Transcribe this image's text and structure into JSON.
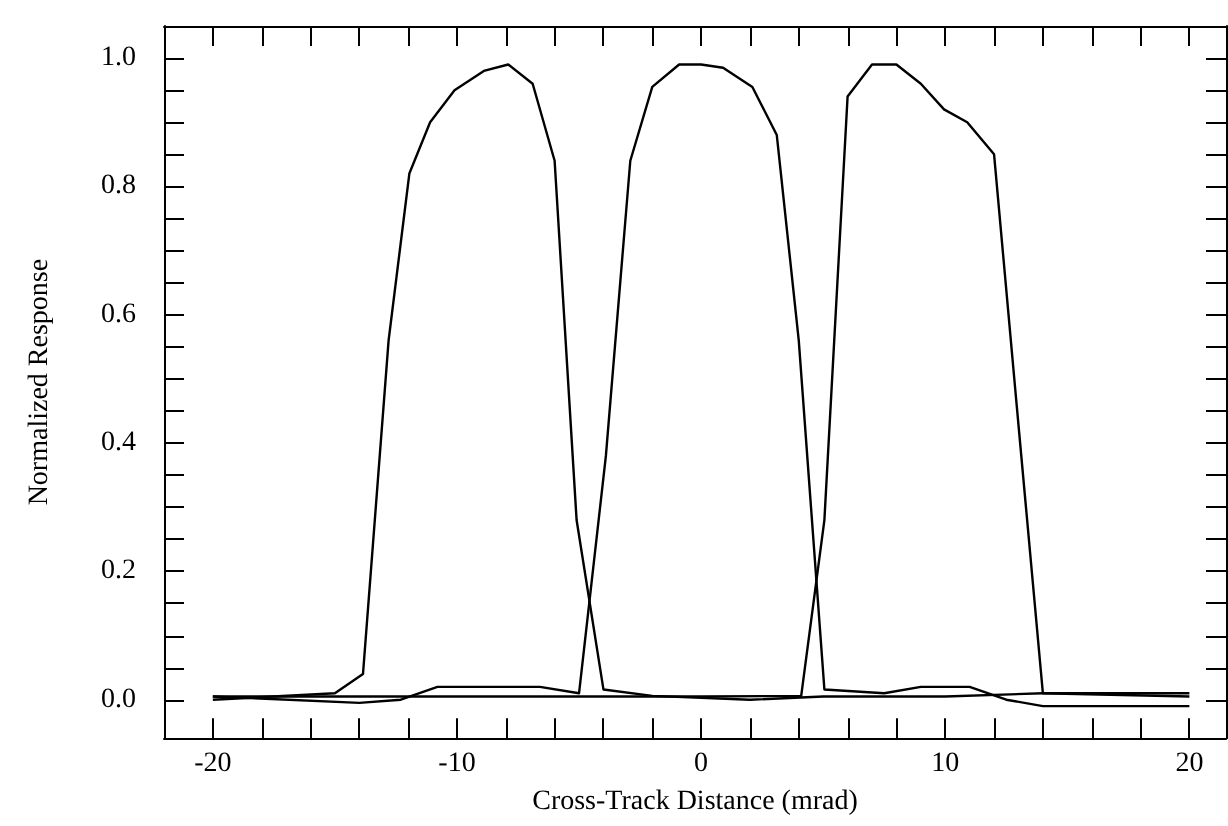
{
  "chart_data": {
    "type": "line",
    "xlabel": "Cross-Track Distance (mrad)",
    "ylabel": "Normalized Response",
    "xlim": [
      -22,
      21.5
    ],
    "ylim": [
      -0.06,
      1.05
    ],
    "xticks": [
      -20,
      {
        "value": -18,
        "label": null
      },
      {
        "value": -16,
        "label": null
      },
      {
        "value": -14,
        "label": null
      },
      {
        "value": -12,
        "label": null
      },
      -10,
      {
        "value": -8,
        "label": null
      },
      {
        "value": -6,
        "label": null
      },
      {
        "value": -4,
        "label": null
      },
      {
        "value": -2,
        "label": null
      },
      0,
      {
        "value": 2,
        "label": null
      },
      {
        "value": 4,
        "label": null
      },
      {
        "value": 6,
        "label": null
      },
      {
        "value": 8,
        "label": null
      },
      10,
      {
        "value": 12,
        "label": null
      },
      {
        "value": 14,
        "label": null
      },
      {
        "value": 16,
        "label": null
      },
      {
        "value": 18,
        "label": null
      },
      20
    ],
    "yticks": [
      {
        "value": 0,
        "label": "0.0"
      },
      {
        "value": 0.05,
        "label": null
      },
      {
        "value": 0.1,
        "label": null
      },
      {
        "value": 0.15,
        "label": null
      },
      0.2,
      {
        "value": 0.25,
        "label": null
      },
      {
        "value": 0.3,
        "label": null
      },
      {
        "value": 0.35,
        "label": null
      },
      0.4,
      {
        "value": 0.45,
        "label": null
      },
      {
        "value": 0.5,
        "label": null
      },
      {
        "value": 0.55,
        "label": null
      },
      0.6,
      {
        "value": 0.65,
        "label": null
      },
      {
        "value": 0.7,
        "label": null
      },
      {
        "value": 0.75,
        "label": null
      },
      0.8,
      {
        "value": 0.85,
        "label": null
      },
      {
        "value": 0.9,
        "label": null
      },
      {
        "value": 0.95,
        "label": null
      },
      {
        "value": 1.0,
        "label": "1.0"
      }
    ],
    "grid": false,
    "marker": "none",
    "line_style": "solid",
    "series": [
      {
        "color": "#000000",
        "x": [
          -20,
          -15,
          -13.85,
          -12.8,
          -11.95,
          -11.1,
          -10.1,
          -8.9,
          -7.9,
          -6.9,
          -6,
          -5.1,
          -4,
          -2,
          2,
          5,
          10,
          14,
          20
        ],
        "values": [
          0,
          0.01,
          0.04,
          0.56,
          0.82,
          0.9,
          0.95,
          0.98,
          0.99,
          0.96,
          0.84,
          0.28,
          0.016,
          0.006,
          0,
          0.005,
          0.005,
          0.01,
          0.01
        ]
      },
      {
        "color": "#000000",
        "x": [
          -20,
          -14,
          -12.3,
          -10.8,
          -6.6,
          -5,
          -3.9,
          -2.9,
          -2,
          -0.9,
          0,
          0.9,
          2.1,
          3.1,
          4,
          5.05,
          7.5,
          9,
          11,
          12.5,
          14,
          20
        ],
        "values": [
          0.005,
          -0.005,
          0,
          0.02,
          0.02,
          0.01,
          0.38,
          0.84,
          0.955,
          0.99,
          0.99,
          0.985,
          0.955,
          0.88,
          0.56,
          0.016,
          0.01,
          0.02,
          0.02,
          0,
          -0.01,
          -0.01
        ]
      },
      {
        "color": "#000000",
        "x": [
          -20,
          -10,
          -5,
          0,
          4.1,
          5.05,
          6,
          7,
          8,
          9,
          9.95,
          10.9,
          12,
          12.9,
          14,
          20
        ],
        "values": [
          0.005,
          0.005,
          0.005,
          0.005,
          0.006,
          0.28,
          0.94,
          0.99,
          0.99,
          0.96,
          0.92,
          0.9,
          0.85,
          0.47,
          0.01,
          0.005
        ]
      }
    ]
  }
}
